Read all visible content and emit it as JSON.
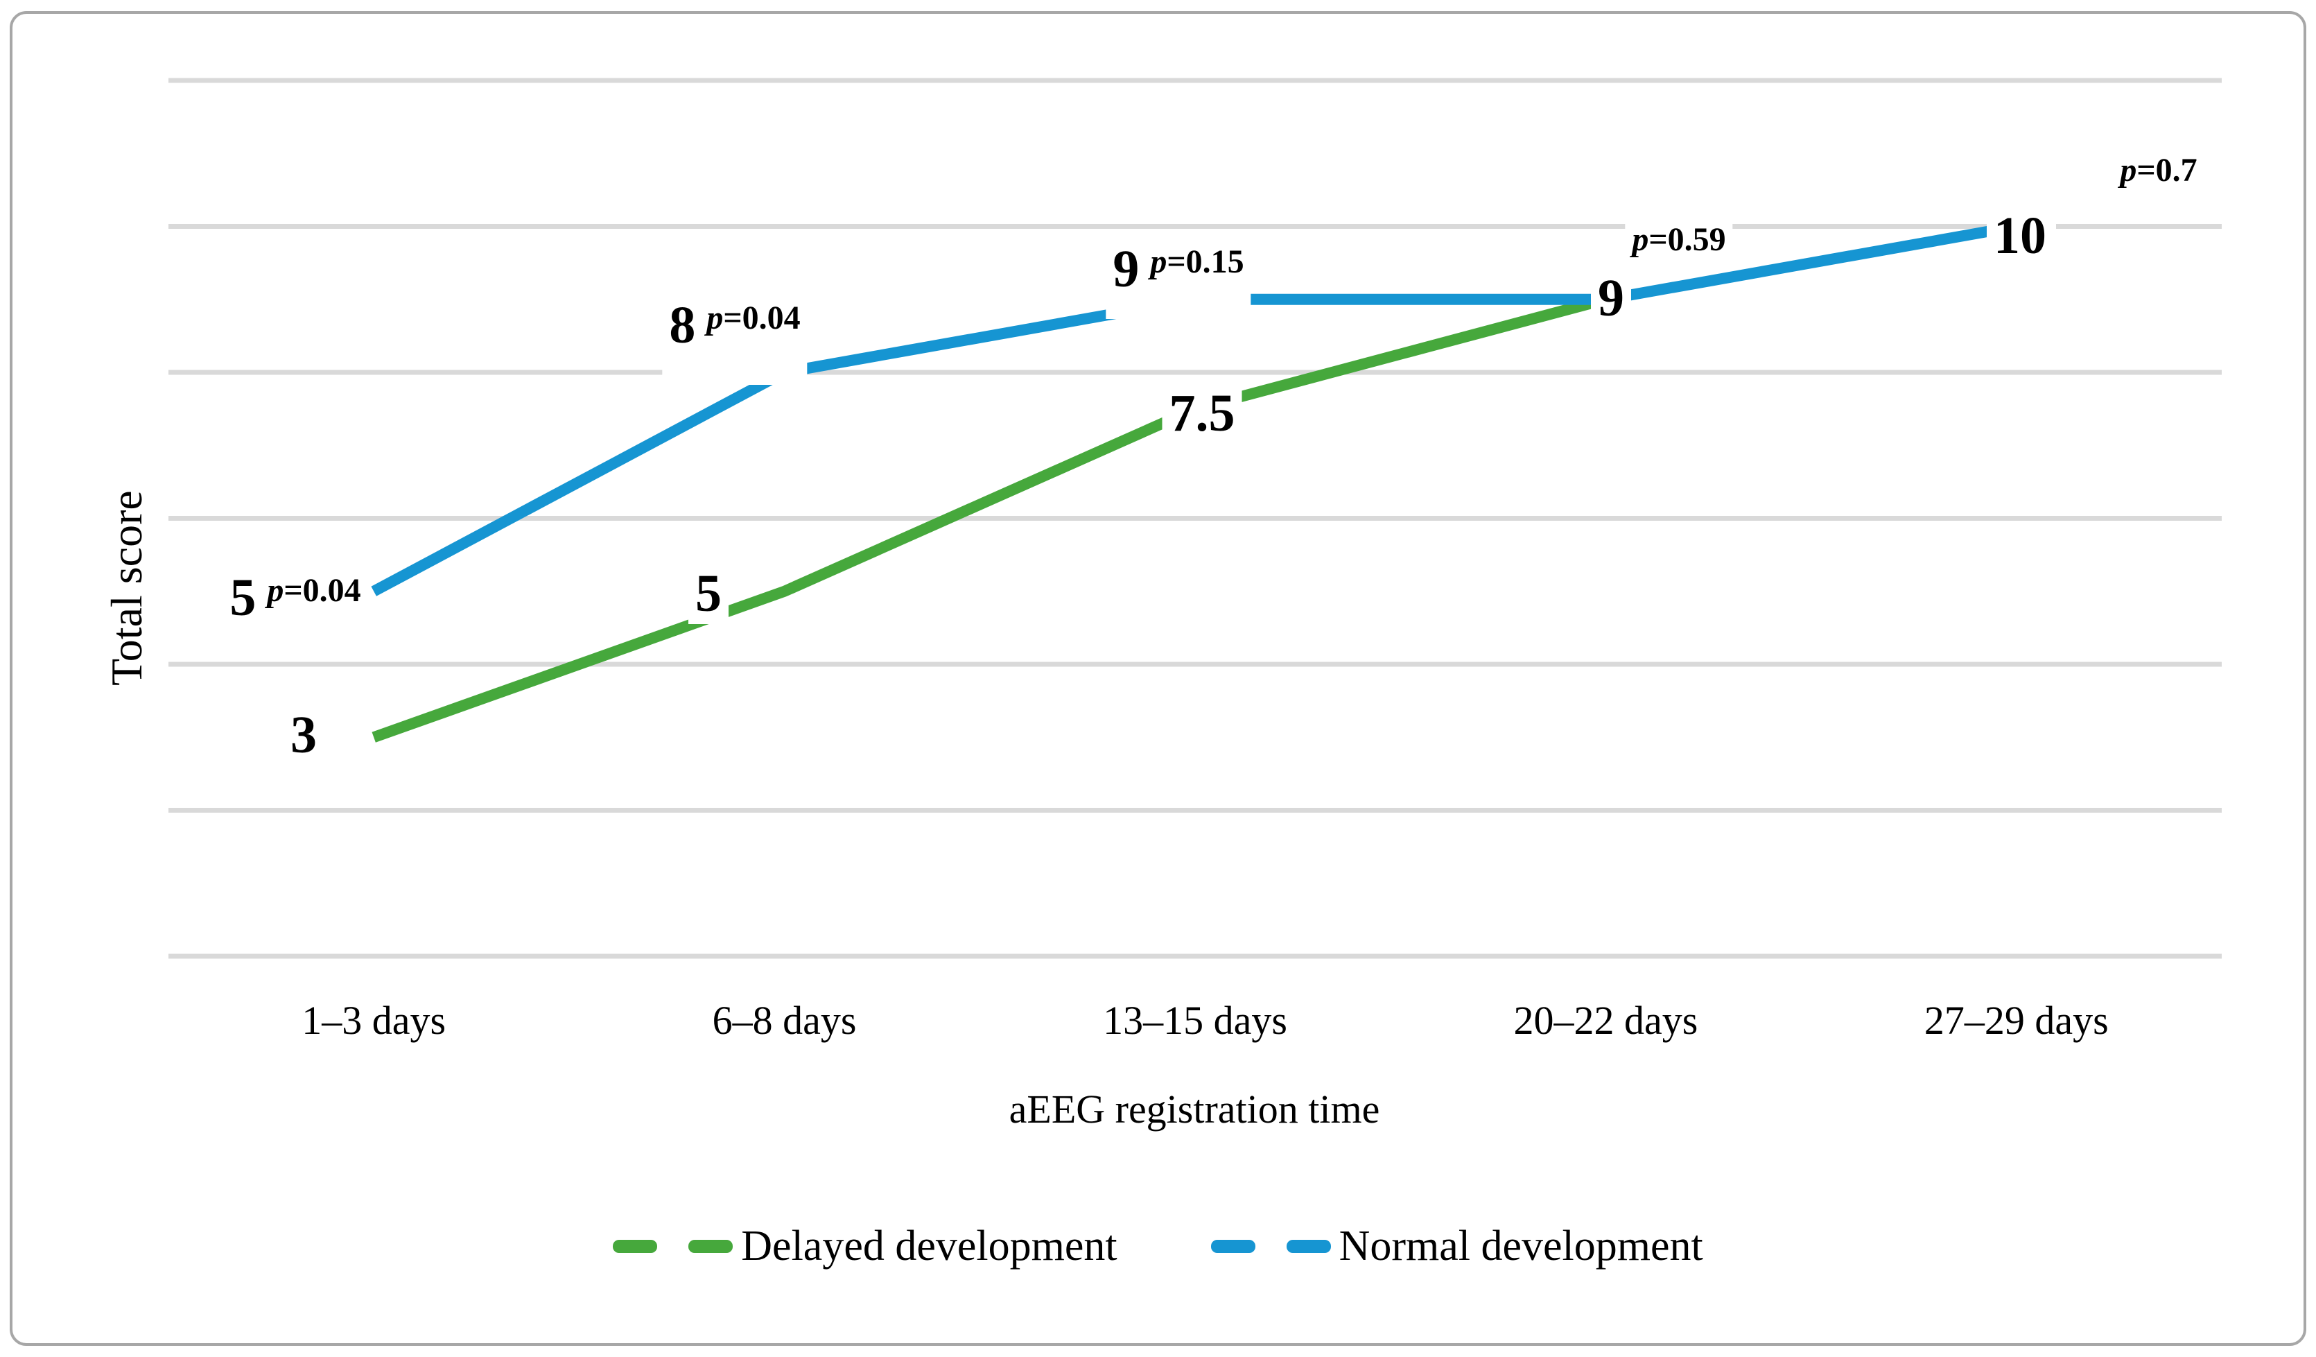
{
  "chart_data": {
    "type": "line",
    "categories": [
      "1–3 days",
      "6–8 days",
      "13–15 days",
      "20–22 days",
      "27–29 days"
    ],
    "series": [
      {
        "name": "Delayed development",
        "color": "#46a83c",
        "values": [
          3,
          5,
          7.5,
          9,
          null
        ]
      },
      {
        "name": "Normal development",
        "color": "#1695d2",
        "values": [
          5,
          8,
          9,
          9,
          10
        ]
      }
    ],
    "xlabel": "aEEG registration time",
    "ylabel": "Total score",
    "ylim": [
      0,
      12
    ],
    "gridline_step": 2,
    "grid": true,
    "legend_position": "bottom",
    "gridline_color": "#d9d9d9",
    "p_values": [
      {
        "category": "1–3 days",
        "label": "p=0.04"
      },
      {
        "category": "6–8 days",
        "label": "p=0.04"
      },
      {
        "category": "13–15 days",
        "label": "p=0.15"
      },
      {
        "category": "20–22 days",
        "label": "p=0.59"
      },
      {
        "category": "27–29 days",
        "label": "p=0.7"
      }
    ],
    "annotations": [
      {
        "num": "5",
        "p": "p=0.04",
        "series": "Normal development",
        "category_index": 0
      },
      {
        "num": "8",
        "p": "p=0.04",
        "series": "Normal development",
        "category_index": 1
      },
      {
        "num": "9",
        "p": "p=0.15",
        "series": "Normal development",
        "category_index": 2
      },
      {
        "num": "9",
        "p": "",
        "series": "both",
        "category_index": 3
      },
      {
        "num": "10",
        "p": "",
        "series": "Normal development",
        "category_index": 4
      },
      {
        "num": "3",
        "p": "",
        "series": "Delayed development",
        "category_index": 0
      },
      {
        "num": "5",
        "p": "",
        "series": "Delayed development",
        "category_index": 1
      },
      {
        "num": "7.5",
        "p": "",
        "series": "Delayed development",
        "category_index": 2
      },
      {
        "num": "",
        "p": "p=0.59",
        "series": "Normal development",
        "category_index": 3
      },
      {
        "num": "",
        "p": "p=0.7",
        "series": "Normal development",
        "category_index": 4
      }
    ]
  },
  "legend": {
    "items": [
      {
        "label": "Delayed development",
        "color": "#46a83c"
      },
      {
        "label": "Normal development",
        "color": "#1695d2"
      }
    ]
  }
}
